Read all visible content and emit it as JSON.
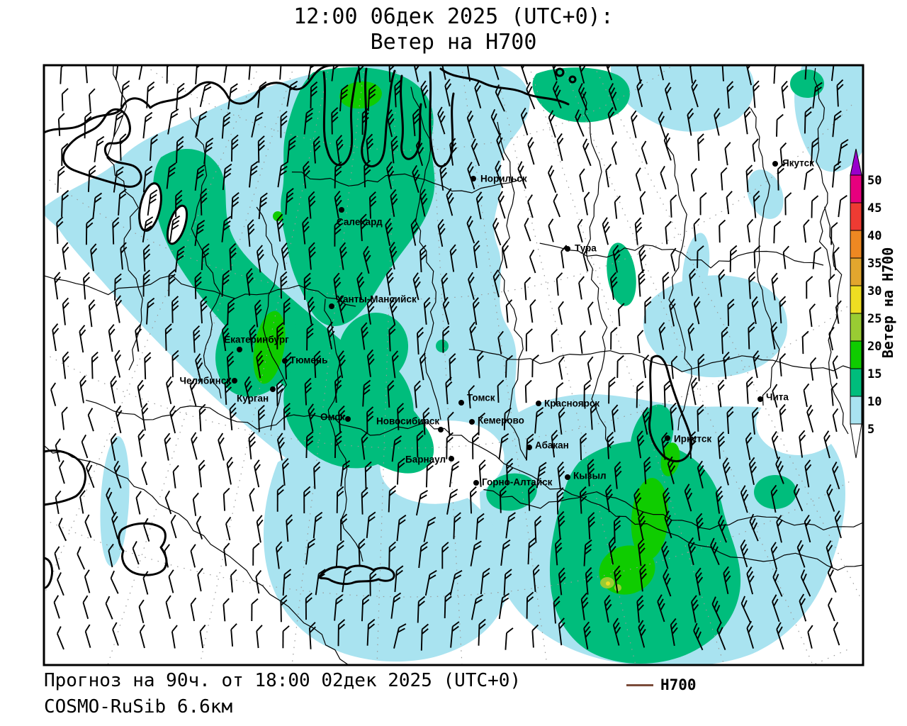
{
  "title": {
    "line1": "12:00 06дек 2025 (UTC+0):",
    "line2": "Ветер на H700"
  },
  "footer": {
    "line1": "Прогноз на 90ч. от 18:00 02дек 2025 (UTC+0)",
    "line2": "COSMO-RuSib 6.6км"
  },
  "legend": {
    "label": "H700",
    "line_color": "#7B4B3A"
  },
  "colorbar": {
    "title": "Ветер на H700",
    "tick_labels": [
      "50",
      "45",
      "40",
      "35",
      "30",
      "25",
      "20",
      "15",
      "10",
      "5"
    ],
    "segment_colors": [
      "#E8007E",
      "#EE3B33",
      "#EE8822",
      "#E2A62E",
      "#EEDD22",
      "#99CC33",
      "#0FCC00",
      "#00BD7C",
      "#A9E3F0"
    ],
    "above_max_color": "#9900CC",
    "below_min_color": "#FFFFFF"
  },
  "map": {
    "fill_legend": {
      "5_10": "#A9E3F0",
      "10_15": "#00BD7C",
      "15_20": "#0FCC00",
      "20_25": "#99CC33",
      "25_30": "#EEDD22"
    },
    "cities": [
      {
        "name": "Норильск",
        "dot": [
          606,
          160
        ],
        "label": [
          616,
          161
        ],
        "anchor": "start"
      },
      {
        "name": "Якутск",
        "dot": [
          1032,
          139
        ],
        "label": [
          1042,
          139
        ],
        "anchor": "start"
      },
      {
        "name": "Тура",
        "dot": [
          739,
          259
        ],
        "label": [
          749,
          259
        ],
        "anchor": "start"
      },
      {
        "name": "Салехард",
        "dot": [
          420,
          204
        ],
        "label": [
          413,
          222
        ],
        "anchor": "start"
      },
      {
        "name": "Ханты-Мансийск",
        "dot": [
          406,
          340
        ],
        "label": [
          413,
          331
        ],
        "anchor": "start"
      },
      {
        "name": "Екатеринбург",
        "dot": [
          276,
          401
        ],
        "label": [
          300,
          388
        ],
        "anchor": "middle"
      },
      {
        "name": "Тюмень",
        "dot": [
          340,
          417
        ],
        "label": [
          347,
          417
        ],
        "anchor": "start"
      },
      {
        "name": "Челябинск",
        "dot": [
          269,
          445
        ],
        "label": [
          264,
          446
        ],
        "anchor": "end"
      },
      {
        "name": "Курган",
        "dot": [
          323,
          457
        ],
        "label": [
          272,
          471
        ],
        "anchor": "start"
      },
      {
        "name": "Омск",
        "dot": [
          429,
          499
        ],
        "label": [
          390,
          497
        ],
        "anchor": "start"
      },
      {
        "name": "Новосибирск",
        "dot": [
          560,
          514
        ],
        "label": [
          469,
          503
        ],
        "anchor": "start"
      },
      {
        "name": "Томск",
        "dot": [
          589,
          476
        ],
        "label": [
          597,
          470
        ],
        "anchor": "start"
      },
      {
        "name": "Кемерово",
        "dot": [
          604,
          503
        ],
        "label": [
          612,
          502
        ],
        "anchor": "start"
      },
      {
        "name": "Красноярск",
        "dot": [
          698,
          477
        ],
        "label": [
          706,
          478
        ],
        "anchor": "start"
      },
      {
        "name": "Абакан",
        "dot": [
          685,
          539
        ],
        "label": [
          693,
          537
        ],
        "anchor": "start"
      },
      {
        "name": "Барнаул",
        "dot": [
          575,
          555
        ],
        "label": [
          510,
          557
        ],
        "anchor": "start"
      },
      {
        "name": "Горно-Алтайск",
        "dot": [
          610,
          589
        ],
        "label": [
          618,
          589
        ],
        "anchor": "start"
      },
      {
        "name": "Кызыл",
        "dot": [
          739,
          581
        ],
        "label": [
          747,
          580
        ],
        "anchor": "start"
      },
      {
        "name": "Иркутск",
        "dot": [
          880,
          526
        ],
        "label": [
          889,
          528
        ],
        "anchor": "start"
      },
      {
        "name": "Чита",
        "dot": [
          1011,
          471
        ],
        "label": [
          1019,
          469
        ],
        "anchor": "start"
      }
    ]
  }
}
